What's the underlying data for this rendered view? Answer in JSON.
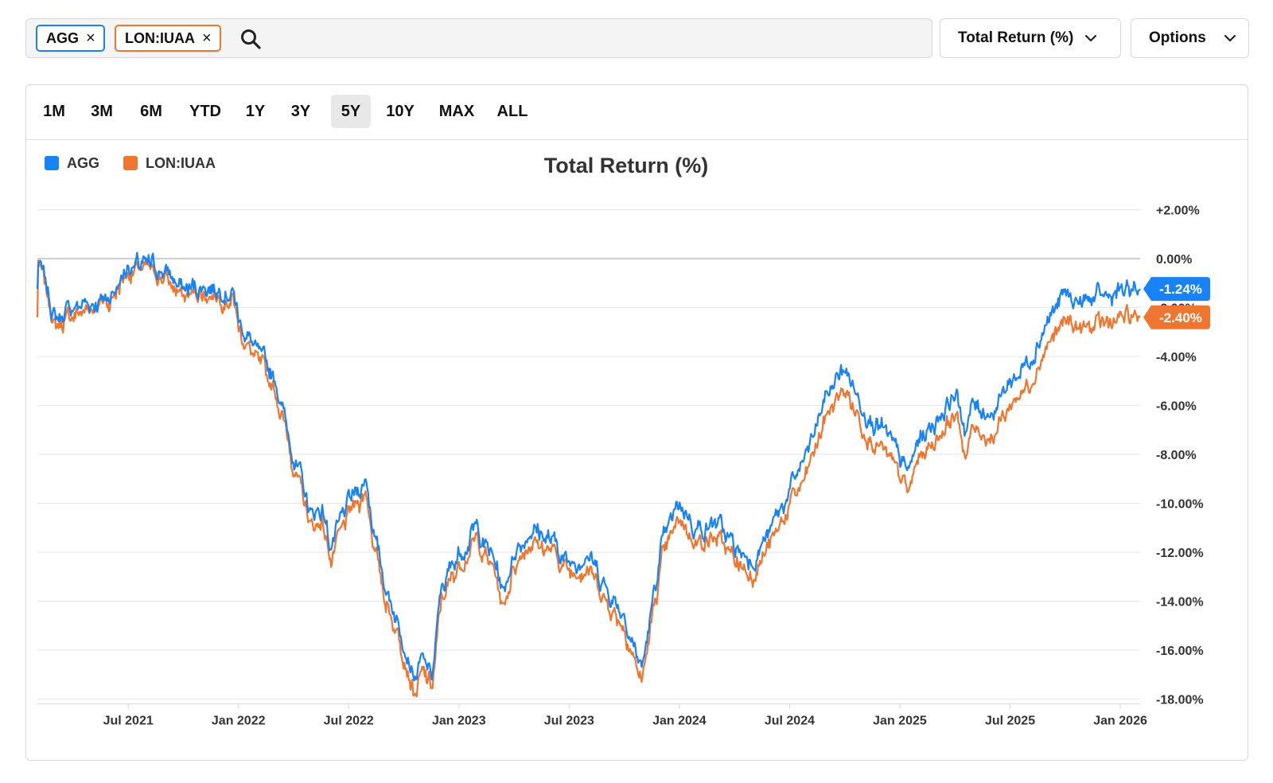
{
  "search": {
    "chips": [
      {
        "label": "AGG",
        "color": "#1a82f7"
      },
      {
        "label": "LON:IUAA",
        "color": "#ef7631"
      }
    ],
    "close_glyph": "×"
  },
  "metric_dropdown": {
    "label": "Total Return (%)"
  },
  "options_dropdown": {
    "label": "Options"
  },
  "tabs": [
    "1M",
    "3M",
    "6M",
    "YTD",
    "1Y",
    "3Y",
    "5Y",
    "10Y",
    "MAX",
    "ALL"
  ],
  "active_tab": "5Y",
  "chart_data": {
    "type": "line",
    "title": "Total Return (%)",
    "xlabel": "",
    "ylabel": "",
    "ylim": [
      -18.2,
      2.8
    ],
    "x_tick_labels": [
      "Jul 2021",
      "Jan 2022",
      "Jul 2022",
      "Jan 2023",
      "Jul 2023",
      "Jan 2024",
      "Jul 2024",
      "Jan 2025",
      "Jul 2025",
      "Jan 2026"
    ],
    "x_tick_positions_year": [
      2021.5,
      2022.0,
      2022.5,
      2023.0,
      2023.5,
      2024.0,
      2024.5,
      2025.0,
      2025.5,
      2026.0
    ],
    "x_range_year": [
      2021.088,
      2026.09
    ],
    "y_ticks": [
      2,
      0,
      -2,
      -4,
      -6,
      -8,
      -10,
      -12,
      -14,
      -16,
      -18
    ],
    "y_tick_labels": [
      "+2.00%",
      "0.00%",
      "-2.00%",
      "-4.00%",
      "-6.00%",
      "-8.00%",
      "-10.00%",
      "-12.00%",
      "-14.00%",
      "-16.00%",
      "-18.00%"
    ],
    "series": [
      {
        "name": "AGG",
        "color": "#1a82f7",
        "last_label": "-1.24%",
        "points": [
          [
            2021.09,
            0.0
          ],
          [
            2021.17,
            -2.5
          ],
          [
            2021.25,
            -2.0
          ],
          [
            2021.33,
            -1.8
          ],
          [
            2021.42,
            -1.5
          ],
          [
            2021.5,
            -0.3
          ],
          [
            2021.58,
            -0.3
          ],
          [
            2021.67,
            -0.5
          ],
          [
            2021.75,
            -1.3
          ],
          [
            2021.83,
            -1.1
          ],
          [
            2021.92,
            -1.2
          ],
          [
            2021.98,
            -1.4
          ],
          [
            2022.0,
            -2.5
          ],
          [
            2022.08,
            -3.8
          ],
          [
            2022.17,
            -5.0
          ],
          [
            2022.25,
            -8.0
          ],
          [
            2022.33,
            -10.5
          ],
          [
            2022.38,
            -10.2
          ],
          [
            2022.42,
            -11.8
          ],
          [
            2022.5,
            -10.0
          ],
          [
            2022.58,
            -9.0
          ],
          [
            2022.62,
            -11.5
          ],
          [
            2022.67,
            -13.5
          ],
          [
            2022.75,
            -15.5
          ],
          [
            2022.8,
            -17.2
          ],
          [
            2022.83,
            -16.5
          ],
          [
            2022.88,
            -17.0
          ],
          [
            2022.92,
            -13.5
          ],
          [
            2023.0,
            -12.0
          ],
          [
            2023.08,
            -11.0
          ],
          [
            2023.17,
            -12.5
          ],
          [
            2023.2,
            -13.8
          ],
          [
            2023.25,
            -12.0
          ],
          [
            2023.33,
            -11.0
          ],
          [
            2023.42,
            -11.5
          ],
          [
            2023.5,
            -12.5
          ],
          [
            2023.58,
            -12.0
          ],
          [
            2023.67,
            -13.5
          ],
          [
            2023.75,
            -14.5
          ],
          [
            2023.8,
            -16.0
          ],
          [
            2023.83,
            -16.8
          ],
          [
            2023.88,
            -14.0
          ],
          [
            2023.92,
            -11.8
          ],
          [
            2024.0,
            -10.0
          ],
          [
            2024.08,
            -11.0
          ],
          [
            2024.17,
            -10.8
          ],
          [
            2024.25,
            -11.8
          ],
          [
            2024.33,
            -12.3
          ],
          [
            2024.42,
            -11.0
          ],
          [
            2024.5,
            -9.5
          ],
          [
            2024.58,
            -8.0
          ],
          [
            2024.67,
            -5.5
          ],
          [
            2024.75,
            -4.5
          ],
          [
            2024.83,
            -6.0
          ],
          [
            2024.92,
            -7.0
          ],
          [
            2025.0,
            -8.2
          ],
          [
            2025.04,
            -8.8
          ],
          [
            2025.08,
            -7.5
          ],
          [
            2025.17,
            -6.5
          ],
          [
            2025.25,
            -5.5
          ],
          [
            2025.3,
            -7.0
          ],
          [
            2025.33,
            -6.0
          ],
          [
            2025.42,
            -6.3
          ],
          [
            2025.5,
            -5.0
          ],
          [
            2025.58,
            -4.2
          ],
          [
            2025.67,
            -2.5
          ],
          [
            2025.75,
            -1.5
          ],
          [
            2025.83,
            -1.8
          ],
          [
            2025.92,
            -1.6
          ],
          [
            2026.0,
            -1.4
          ],
          [
            2026.09,
            -1.24
          ]
        ]
      },
      {
        "name": "LON:IUAA",
        "color": "#ef7631",
        "last_label": "-2.40%",
        "points": [
          [
            2021.09,
            0.0
          ],
          [
            2021.17,
            -2.8
          ],
          [
            2021.25,
            -2.3
          ],
          [
            2021.33,
            -2.0
          ],
          [
            2021.42,
            -1.7
          ],
          [
            2021.5,
            -0.5
          ],
          [
            2021.58,
            -0.5
          ],
          [
            2021.67,
            -0.8
          ],
          [
            2021.75,
            -1.6
          ],
          [
            2021.83,
            -1.4
          ],
          [
            2021.92,
            -1.5
          ],
          [
            2021.98,
            -1.7
          ],
          [
            2022.0,
            -2.8
          ],
          [
            2022.08,
            -4.2
          ],
          [
            2022.17,
            -5.4
          ],
          [
            2022.25,
            -8.4
          ],
          [
            2022.33,
            -11.0
          ],
          [
            2022.38,
            -10.7
          ],
          [
            2022.42,
            -12.3
          ],
          [
            2022.5,
            -10.5
          ],
          [
            2022.58,
            -9.5
          ],
          [
            2022.62,
            -12.0
          ],
          [
            2022.67,
            -14.0
          ],
          [
            2022.75,
            -16.0
          ],
          [
            2022.8,
            -17.8
          ],
          [
            2022.83,
            -17.0
          ],
          [
            2022.88,
            -17.5
          ],
          [
            2022.92,
            -14.0
          ],
          [
            2023.0,
            -12.5
          ],
          [
            2023.08,
            -11.5
          ],
          [
            2023.17,
            -13.0
          ],
          [
            2023.2,
            -14.3
          ],
          [
            2023.25,
            -12.5
          ],
          [
            2023.33,
            -11.5
          ],
          [
            2023.42,
            -12.0
          ],
          [
            2023.5,
            -12.8
          ],
          [
            2023.58,
            -12.5
          ],
          [
            2023.67,
            -14.0
          ],
          [
            2023.75,
            -15.0
          ],
          [
            2023.8,
            -16.5
          ],
          [
            2023.83,
            -17.3
          ],
          [
            2023.88,
            -14.6
          ],
          [
            2023.92,
            -12.4
          ],
          [
            2024.0,
            -10.6
          ],
          [
            2024.08,
            -11.6
          ],
          [
            2024.17,
            -11.4
          ],
          [
            2024.25,
            -12.4
          ],
          [
            2024.33,
            -12.9
          ],
          [
            2024.42,
            -11.6
          ],
          [
            2024.5,
            -10.1
          ],
          [
            2024.58,
            -8.8
          ],
          [
            2024.67,
            -6.3
          ],
          [
            2024.75,
            -5.3
          ],
          [
            2024.83,
            -6.8
          ],
          [
            2024.92,
            -7.8
          ],
          [
            2025.0,
            -9.0
          ],
          [
            2025.04,
            -9.6
          ],
          [
            2025.08,
            -8.3
          ],
          [
            2025.17,
            -7.3
          ],
          [
            2025.25,
            -6.3
          ],
          [
            2025.3,
            -8.0
          ],
          [
            2025.33,
            -7.0
          ],
          [
            2025.42,
            -7.2
          ],
          [
            2025.5,
            -6.0
          ],
          [
            2025.58,
            -5.2
          ],
          [
            2025.67,
            -3.5
          ],
          [
            2025.75,
            -2.6
          ],
          [
            2025.83,
            -2.9
          ],
          [
            2025.92,
            -2.7
          ],
          [
            2026.0,
            -2.5
          ],
          [
            2026.09,
            -2.4
          ]
        ]
      }
    ]
  }
}
